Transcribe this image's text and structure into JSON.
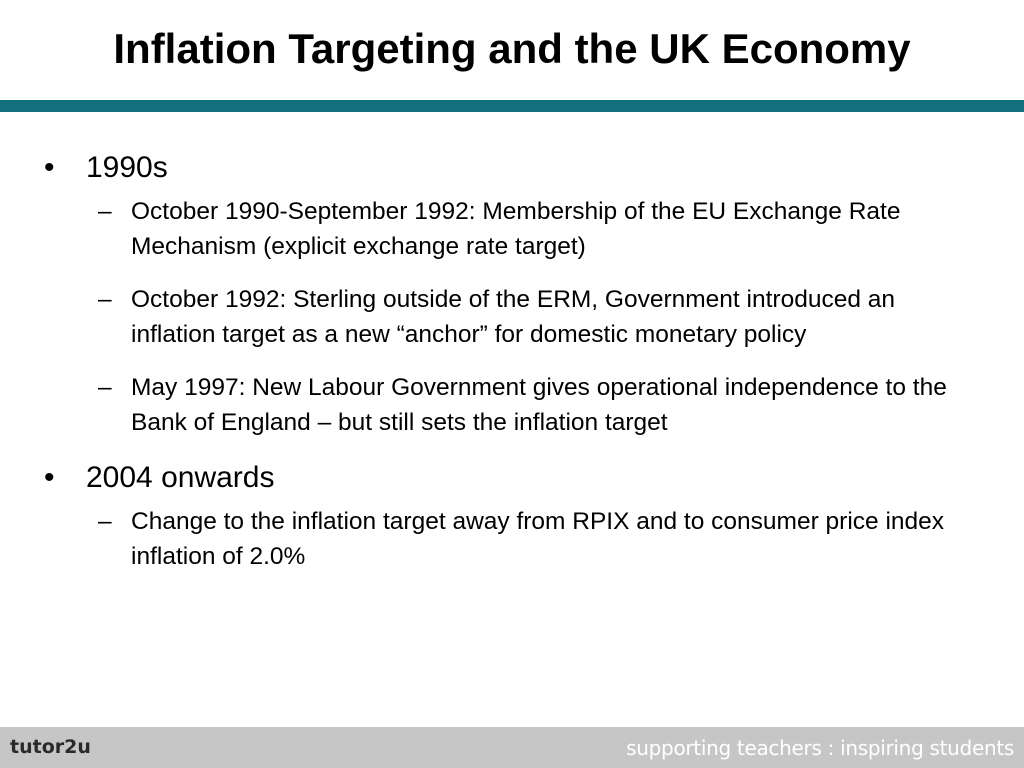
{
  "slide": {
    "title": "Inflation Targeting and the UK Economy",
    "accent_color": "#126f7c",
    "bullets": [
      {
        "marker": "•",
        "text": "1990s",
        "subitems": [
          {
            "marker": "–",
            "text": "October 1990-September 1992: Membership of the EU Exchange Rate Mechanism (explicit exchange rate target)"
          },
          {
            "marker": "–",
            "text": "October 1992: Sterling outside of the ERM, Government introduced an inflation target as a new “anchor” for domestic monetary policy"
          },
          {
            "marker": "–",
            "text": "May 1997: New Labour Government gives operational independence to the Bank of England – but still sets the inflation target"
          }
        ]
      },
      {
        "marker": "•",
        "text": "2004 onwards",
        "subitems": [
          {
            "marker": "–",
            "text": "Change to the inflation target away from RPIX and to consumer price index inflation of 2.0%"
          }
        ]
      }
    ]
  },
  "footer": {
    "logo": "tutor2u",
    "tagline": "supporting teachers : inspiring students",
    "background_color": "#c6c6c6"
  }
}
